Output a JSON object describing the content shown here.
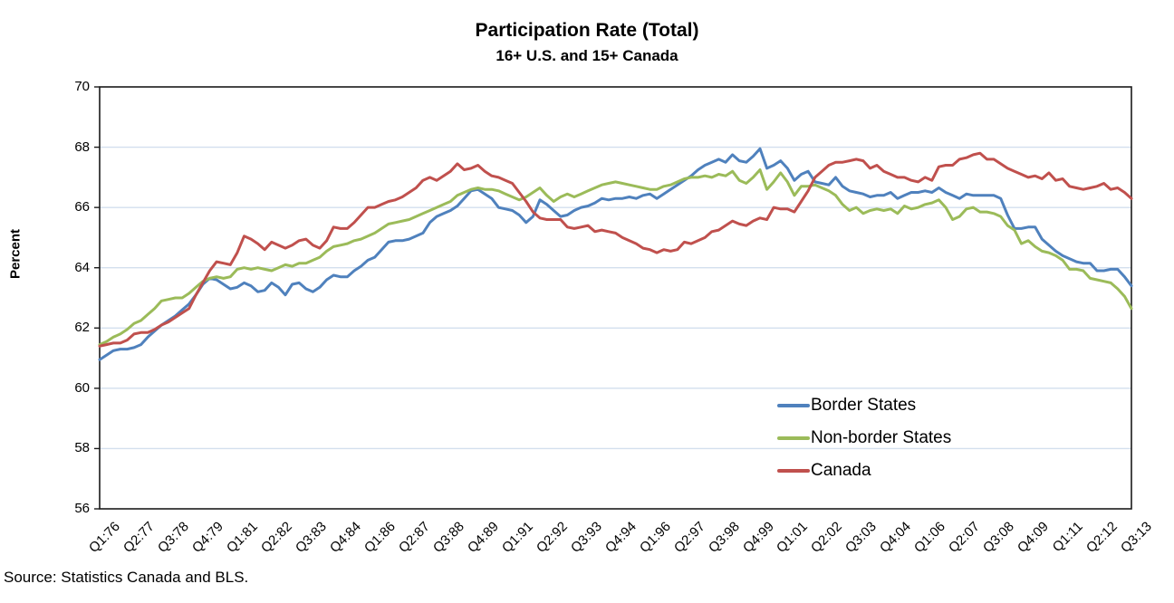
{
  "chart": {
    "title": "Participation Rate (Total)",
    "subtitle": "16+ U.S. and 15+ Canada",
    "source_note": "Source: Statistics Canada and BLS."
  },
  "chart_data": {
    "type": "line",
    "title": "Participation Rate (Total)",
    "subtitle": "16+ U.S. and 15+ Canada",
    "xlabel": "",
    "ylabel": "Percent",
    "ylim": [
      56,
      70
    ],
    "y_ticks": [
      70,
      68,
      66,
      64,
      62,
      60,
      58,
      56
    ],
    "grid": "horizontal",
    "legend_position": "inside-right",
    "x_start": "1976Q1",
    "x_end": "2013Q3",
    "x_frequency": "quarterly",
    "x_tick_step": 5,
    "x_tick_labels": [
      "Q1:76",
      "Q2:77",
      "Q3:78",
      "Q4:79",
      "Q1:81",
      "Q2:82",
      "Q3:83",
      "Q4:84",
      "Q1:86",
      "Q2:87",
      "Q3:88",
      "Q4:89",
      "Q1:91",
      "Q2:92",
      "Q3:93",
      "Q4:94",
      "Q1:96",
      "Q2:97",
      "Q3:98",
      "Q4:99",
      "Q1:01",
      "Q2:02",
      "Q3:03",
      "Q4:04",
      "Q1:06",
      "Q2:07",
      "Q3:08",
      "Q4:09",
      "Q1:11",
      "Q2:12",
      "Q3:13"
    ],
    "series": [
      {
        "name": "Border States",
        "color": "#4F81BD",
        "values": [
          60.95,
          61.1,
          61.25,
          61.3,
          61.3,
          61.35,
          61.45,
          61.7,
          61.9,
          62.1,
          62.25,
          62.4,
          62.6,
          62.8,
          63.1,
          63.45,
          63.65,
          63.6,
          63.45,
          63.3,
          63.35,
          63.5,
          63.4,
          63.2,
          63.25,
          63.5,
          63.35,
          63.1,
          63.45,
          63.5,
          63.3,
          63.2,
          63.35,
          63.6,
          63.75,
          63.7,
          63.7,
          63.9,
          64.05,
          64.25,
          64.35,
          64.6,
          64.85,
          64.9,
          64.9,
          64.95,
          65.05,
          65.15,
          65.5,
          65.7,
          65.8,
          65.9,
          66.05,
          66.3,
          66.55,
          66.6,
          66.45,
          66.3,
          66.0,
          65.95,
          65.9,
          65.75,
          65.5,
          65.7,
          66.25,
          66.1,
          65.9,
          65.7,
          65.75,
          65.9,
          66.0,
          66.05,
          66.15,
          66.3,
          66.25,
          66.3,
          66.3,
          66.35,
          66.3,
          66.4,
          66.45,
          66.3,
          66.45,
          66.6,
          66.75,
          66.9,
          67.05,
          67.25,
          67.4,
          67.5,
          67.6,
          67.5,
          67.75,
          67.55,
          67.5,
          67.7,
          67.95,
          67.3,
          67.4,
          67.55,
          67.3,
          66.9,
          67.1,
          67.2,
          66.85,
          66.8,
          66.75,
          67.0,
          66.7,
          66.55,
          66.5,
          66.45,
          66.35,
          66.4,
          66.4,
          66.5,
          66.3,
          66.4,
          66.5,
          66.5,
          66.55,
          66.5,
          66.65,
          66.5,
          66.4,
          66.3,
          66.45,
          66.4,
          66.4,
          66.4,
          66.4,
          66.3,
          65.75,
          65.3,
          65.3,
          65.35,
          65.35,
          64.95,
          64.75,
          64.55,
          64.4,
          64.3,
          64.2,
          64.15,
          64.15,
          63.9,
          63.9,
          63.95,
          63.95,
          63.7,
          63.4
        ]
      },
      {
        "name": "Non-border States",
        "color": "#9BBB59",
        "values": [
          61.45,
          61.55,
          61.7,
          61.8,
          61.95,
          62.15,
          62.25,
          62.45,
          62.65,
          62.9,
          62.95,
          63.0,
          63.0,
          63.15,
          63.35,
          63.55,
          63.65,
          63.7,
          63.65,
          63.7,
          63.95,
          64.0,
          63.95,
          64.0,
          63.95,
          63.9,
          64.0,
          64.1,
          64.05,
          64.15,
          64.15,
          64.25,
          64.35,
          64.55,
          64.7,
          64.75,
          64.8,
          64.9,
          64.95,
          65.05,
          65.15,
          65.3,
          65.45,
          65.5,
          65.55,
          65.6,
          65.7,
          65.8,
          65.9,
          66.0,
          66.1,
          66.2,
          66.4,
          66.5,
          66.6,
          66.65,
          66.6,
          66.6,
          66.55,
          66.45,
          66.35,
          66.25,
          66.35,
          66.5,
          66.65,
          66.4,
          66.2,
          66.35,
          66.45,
          66.35,
          66.45,
          66.55,
          66.65,
          66.75,
          66.8,
          66.85,
          66.8,
          66.75,
          66.7,
          66.65,
          66.6,
          66.6,
          66.7,
          66.75,
          66.85,
          66.95,
          67.0,
          67.0,
          67.05,
          67.0,
          67.1,
          67.05,
          67.2,
          66.9,
          66.8,
          67.0,
          67.25,
          66.6,
          66.85,
          67.15,
          66.85,
          66.4,
          66.7,
          66.7,
          66.75,
          66.65,
          66.55,
          66.4,
          66.1,
          65.9,
          66.0,
          65.8,
          65.9,
          65.95,
          65.9,
          65.95,
          65.8,
          66.05,
          65.95,
          66.0,
          66.1,
          66.15,
          66.25,
          66.0,
          65.6,
          65.7,
          65.95,
          66.0,
          65.85,
          65.85,
          65.8,
          65.7,
          65.4,
          65.25,
          64.8,
          64.9,
          64.7,
          64.55,
          64.5,
          64.4,
          64.25,
          63.95,
          63.95,
          63.9,
          63.65,
          63.6,
          63.55,
          63.5,
          63.3,
          63.05,
          62.65
        ]
      },
      {
        "name": "Canada",
        "color": "#C0504D",
        "values": [
          61.4,
          61.45,
          61.5,
          61.5,
          61.6,
          61.8,
          61.85,
          61.85,
          61.95,
          62.1,
          62.2,
          62.35,
          62.5,
          62.65,
          63.1,
          63.5,
          63.9,
          64.2,
          64.15,
          64.1,
          64.5,
          65.05,
          64.95,
          64.8,
          64.6,
          64.85,
          64.75,
          64.65,
          64.75,
          64.9,
          64.95,
          64.75,
          64.65,
          64.9,
          65.35,
          65.3,
          65.3,
          65.5,
          65.75,
          66.0,
          66.0,
          66.1,
          66.2,
          66.25,
          66.35,
          66.5,
          66.65,
          66.9,
          67.0,
          66.9,
          67.05,
          67.2,
          67.45,
          67.25,
          67.3,
          67.4,
          67.2,
          67.05,
          67.0,
          66.9,
          66.8,
          66.5,
          66.2,
          65.85,
          65.65,
          65.6,
          65.6,
          65.6,
          65.35,
          65.3,
          65.35,
          65.4,
          65.2,
          65.25,
          65.2,
          65.15,
          65.0,
          64.9,
          64.8,
          64.65,
          64.6,
          64.5,
          64.6,
          64.55,
          64.6,
          64.85,
          64.8,
          64.9,
          65.0,
          65.2,
          65.25,
          65.4,
          65.55,
          65.45,
          65.4,
          65.55,
          65.65,
          65.6,
          66.0,
          65.95,
          65.95,
          65.85,
          66.2,
          66.55,
          67.0,
          67.2,
          67.4,
          67.5,
          67.5,
          67.55,
          67.6,
          67.55,
          67.3,
          67.4,
          67.2,
          67.1,
          67.0,
          67.0,
          66.9,
          66.85,
          67.0,
          66.9,
          67.35,
          67.4,
          67.4,
          67.6,
          67.65,
          67.75,
          67.8,
          67.6,
          67.6,
          67.45,
          67.3,
          67.2,
          67.1,
          67.0,
          67.05,
          66.95,
          67.15,
          66.9,
          66.95,
          66.7,
          66.65,
          66.6,
          66.65,
          66.7,
          66.8,
          66.6,
          66.65,
          66.5,
          66.3
        ]
      }
    ],
    "colors": {
      "grid": "#d3dfee",
      "axis_border": "#1a1a1a",
      "text": "#000000"
    }
  }
}
